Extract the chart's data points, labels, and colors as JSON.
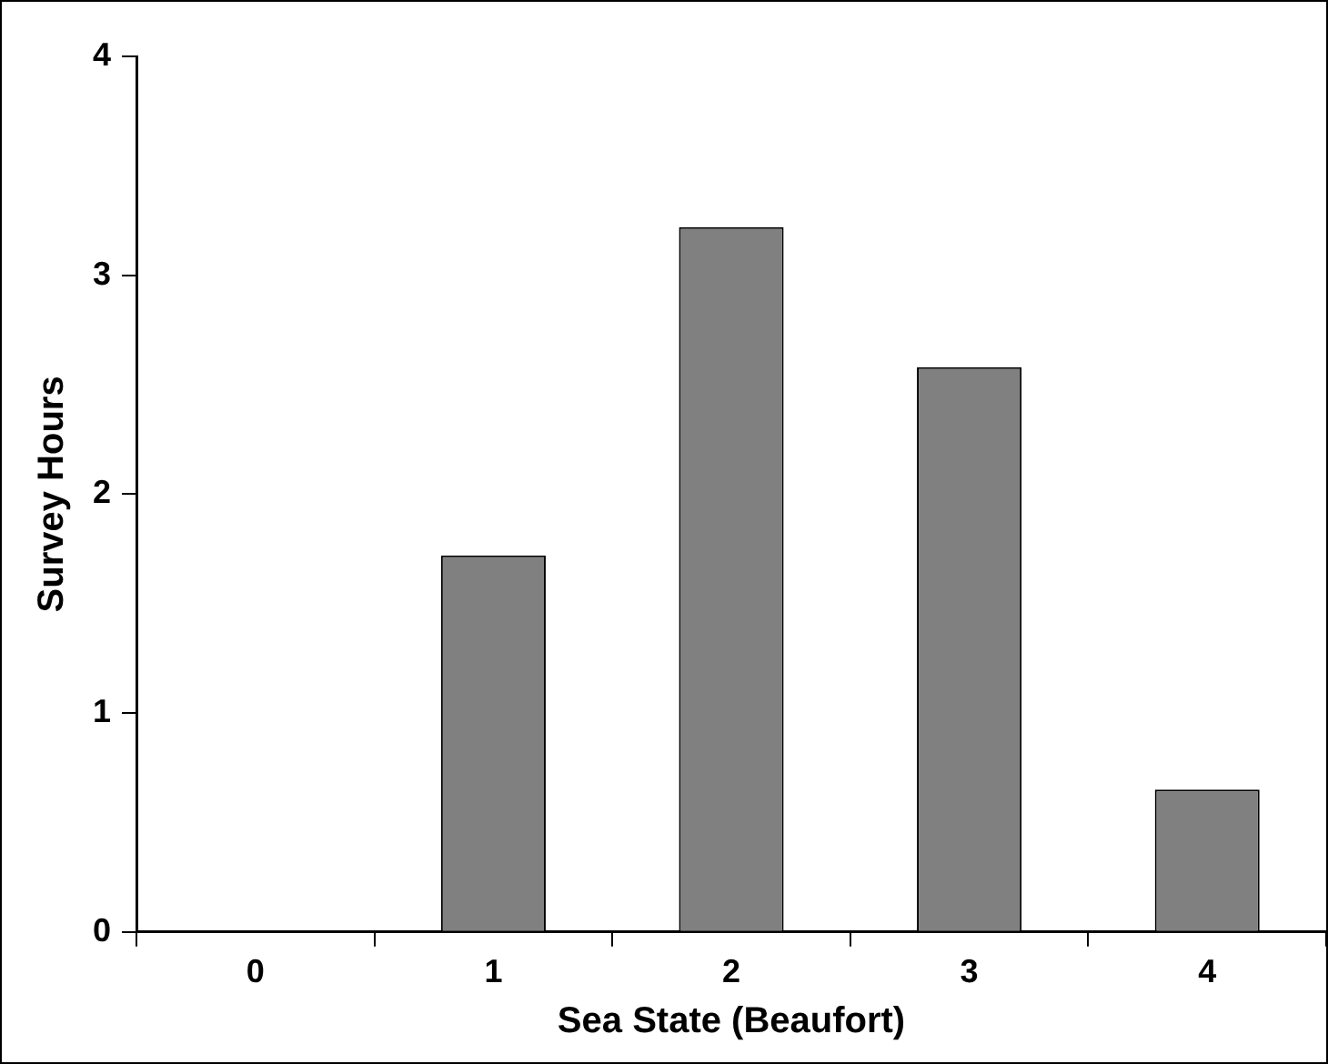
{
  "chart_data": {
    "type": "bar",
    "xlabel": "Sea State (Beaufort)",
    "ylabel": "Survey Hours",
    "categories": [
      "0",
      "1",
      "2",
      "3",
      "4"
    ],
    "values": [
      0,
      1.72,
      3.22,
      2.58,
      0.65
    ],
    "color": "#808080",
    "ylim": [
      0,
      4
    ],
    "yticks": [
      0,
      1,
      2,
      3,
      4
    ],
    "grid": false,
    "legend": false
  }
}
